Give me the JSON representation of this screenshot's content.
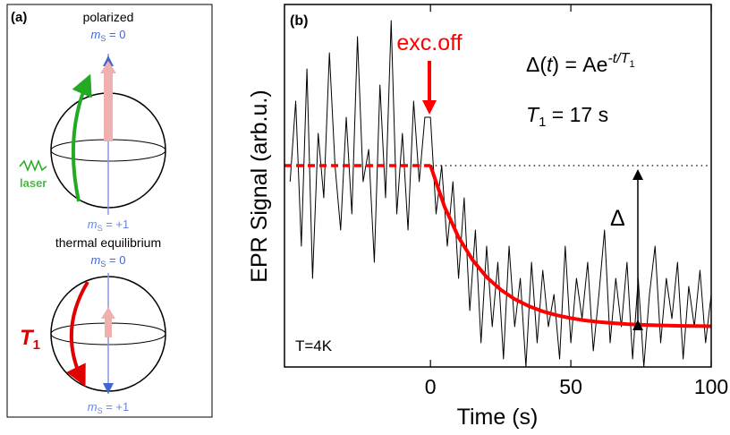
{
  "chart_data": {
    "type": "line",
    "panel_label": "(b)",
    "xlabel": "Time (s)",
    "ylabel": "EPR Signal (arb.u.)",
    "xlim": [
      -52,
      100
    ],
    "ylim": [
      -0.25,
      2.0
    ],
    "xticks": [
      0,
      50,
      100
    ],
    "series": [
      {
        "color": "#000000",
        "style": "solid",
        "x": [
          -50,
          -48,
          -46,
          -44,
          -42,
          -40,
          -38,
          -36,
          -34,
          -32,
          -30,
          -28,
          -26,
          -24,
          -22,
          -20,
          -18,
          -16,
          -14,
          -12,
          -10,
          -8,
          -6,
          -4,
          -2,
          0,
          2,
          4,
          6,
          8,
          10,
          12,
          14,
          16,
          18,
          20,
          22,
          24,
          26,
          28,
          30,
          32,
          34,
          36,
          38,
          40,
          42,
          44,
          46,
          48,
          50,
          52,
          54,
          56,
          58,
          60,
          62,
          64,
          66,
          68,
          70,
          72,
          74,
          76,
          78,
          80,
          82,
          84,
          86,
          88,
          90,
          92,
          94,
          96,
          98,
          100
        ],
        "values": [
          0.9,
          1.4,
          0.5,
          1.6,
          0.3,
          1.2,
          0.8,
          1.7,
          1.0,
          0.6,
          1.3,
          0.7,
          1.8,
          0.9,
          1.1,
          0.4,
          1.5,
          0.8,
          1.9,
          0.7,
          1.2,
          0.6,
          1.4,
          0.9,
          1.3,
          1.3,
          0.7,
          1.0,
          0.5,
          0.9,
          0.3,
          0.8,
          0.1,
          0.6,
          -0.1,
          0.5,
          0.0,
          0.4,
          -0.2,
          0.5,
          0.0,
          0.3,
          -0.25,
          0.4,
          -0.1,
          0.35,
          0.0,
          0.2,
          -0.2,
          0.5,
          -0.1,
          0.3,
          0.05,
          0.4,
          -0.15,
          0.2,
          0.6,
          -0.1,
          0.3,
          0.0,
          0.4,
          -0.2,
          0.3,
          -0.25,
          0.2,
          0.5,
          -0.1,
          0.3,
          0.05,
          0.4,
          -0.2,
          0.25,
          0.0,
          0.35,
          -0.1,
          0.2
        ]
      },
      {
        "color": "#ff0000",
        "style": "fit",
        "x": [
          0,
          5,
          10,
          15,
          20,
          25,
          30,
          35,
          40,
          45,
          50,
          55,
          60,
          65,
          70,
          75,
          80,
          85,
          90,
          95,
          100
        ],
        "values": [
          1,
          0.745,
          0.555,
          0.414,
          0.308,
          0.23,
          0.171,
          0.128,
          0.095,
          0.071,
          0.053,
          0.039,
          0.029,
          0.022,
          0.016,
          0.012,
          0.009,
          0.007,
          0.005,
          0.004,
          0.003
        ]
      },
      {
        "color": "#ff0000",
        "style": "dashed",
        "x": [
          -52,
          0
        ],
        "values": [
          1,
          1
        ]
      },
      {
        "color": "#000000",
        "style": "dotted",
        "x": [
          0,
          100
        ],
        "values": [
          1,
          1
        ]
      }
    ],
    "annotations": {
      "excitation": "exc.off",
      "formula": [
        "Δ(",
        "t",
        ") = Ae",
        "-t/T",
        "1"
      ],
      "t1": [
        "T",
        "1",
        " = 17 s"
      ],
      "delta": "Δ",
      "temperature": "T=4K"
    }
  },
  "panel_a": {
    "label": "(a)",
    "top": {
      "title": "polarized",
      "upper_state": [
        "m",
        "S",
        " = 0"
      ],
      "lower_state": [
        "m",
        "S",
        " = +1"
      ],
      "laser": "laser"
    },
    "bottom": {
      "title": "thermal equilibrium",
      "upper_state": [
        "m",
        "S",
        " = 0"
      ],
      "lower_state": [
        "m",
        "S",
        " = +1"
      ],
      "process": [
        "T",
        "1"
      ]
    }
  }
}
